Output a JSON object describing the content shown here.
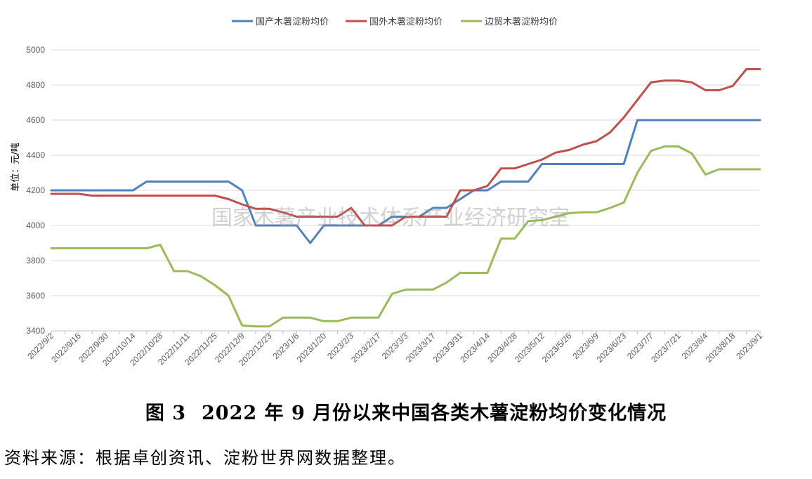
{
  "chart_data": {
    "type": "line",
    "ylabel": "单位：元/吨",
    "ylim": [
      3400,
      5000
    ],
    "yticks": [
      3400,
      3600,
      3800,
      4000,
      4200,
      4400,
      4600,
      4800,
      5000
    ],
    "grid": "horizontal",
    "legend_position": "top-center",
    "x_tick_labels": [
      "2022/9/2",
      "2022/9/16",
      "2022/9/30",
      "2022/10/14",
      "2022/10/28",
      "2022/11/11",
      "2022/11/25",
      "2022/12/9",
      "2022/12/23",
      "2023/1/6",
      "2023/1/20",
      "2023/2/3",
      "2023/2/17",
      "2023/3/3",
      "2023/3/17",
      "2023/3/31",
      "2023/4/14",
      "2023/4/28",
      "2023/5/12",
      "2023/5/26",
      "2023/6/9",
      "2023/6/23",
      "2023/7/7",
      "2023/7/21",
      "2023/8/4",
      "2023/8/18",
      "2023/9/1"
    ],
    "x": [
      "2022/9/2",
      "2022/9/9",
      "2022/9/16",
      "2022/9/23",
      "2022/9/30",
      "2022/10/7",
      "2022/10/14",
      "2022/10/21",
      "2022/10/28",
      "2022/11/4",
      "2022/11/11",
      "2022/11/18",
      "2022/11/25",
      "2022/12/2",
      "2022/12/9",
      "2022/12/16",
      "2022/12/23",
      "2022/12/30",
      "2023/1/6",
      "2023/1/13",
      "2023/1/20",
      "2023/1/27",
      "2023/2/3",
      "2023/2/10",
      "2023/2/17",
      "2023/2/24",
      "2023/3/3",
      "2023/3/10",
      "2023/3/17",
      "2023/3/24",
      "2023/3/31",
      "2023/4/7",
      "2023/4/14",
      "2023/4/21",
      "2023/4/28",
      "2023/5/5",
      "2023/5/12",
      "2023/5/19",
      "2023/5/26",
      "2023/6/2",
      "2023/6/9",
      "2023/6/16",
      "2023/6/23",
      "2023/6/30",
      "2023/7/7",
      "2023/7/14",
      "2023/7/21",
      "2023/7/28",
      "2023/8/4",
      "2023/8/11",
      "2023/8/18",
      "2023/8/25",
      "2023/9/1"
    ],
    "series": [
      {
        "name": "国产木薯淀粉均价",
        "color": "#4f81bd",
        "values": [
          4200,
          4200,
          4200,
          4200,
          4200,
          4200,
          4200,
          4250,
          4250,
          4250,
          4250,
          4250,
          4250,
          4250,
          4200,
          4000,
          4000,
          4000,
          4000,
          3900,
          4000,
          4000,
          4000,
          4000,
          4000,
          4050,
          4050,
          4050,
          4100,
          4100,
          4150,
          4200,
          4200,
          4250,
          4250,
          4250,
          4350,
          4350,
          4350,
          4350,
          4350,
          4350,
          4350,
          4600,
          4600,
          4600,
          4600,
          4600,
          4600,
          4600,
          4600,
          4600,
          4600
        ]
      },
      {
        "name": "国外木薯淀粉均价",
        "color": "#c0504d",
        "values": [
          4180,
          4180,
          4180,
          4170,
          4170,
          4170,
          4170,
          4170,
          4170,
          4170,
          4170,
          4170,
          4170,
          4150,
          4120,
          4095,
          4095,
          4075,
          4050,
          4050,
          4050,
          4050,
          4100,
          4000,
          4000,
          4000,
          4050,
          4050,
          4050,
          4050,
          4200,
          4200,
          4225,
          4325,
          4325,
          4350,
          4375,
          4415,
          4430,
          4460,
          4480,
          4530,
          4615,
          4715,
          4815,
          4825,
          4825,
          4815,
          4770,
          4770,
          4795,
          4890,
          4890
        ]
      },
      {
        "name": "边贸木薯淀粉均价",
        "color": "#9bbb59",
        "values": [
          3870,
          3870,
          3870,
          3870,
          3870,
          3870,
          3870,
          3870,
          3890,
          3740,
          3740,
          3710,
          3660,
          3600,
          3430,
          3425,
          3425,
          3475,
          3475,
          3475,
          3455,
          3455,
          3475,
          3475,
          3475,
          3610,
          3635,
          3635,
          3635,
          3675,
          3730,
          3730,
          3730,
          3925,
          3925,
          4025,
          4030,
          4050,
          4070,
          4075,
          4075,
          4100,
          4130,
          4300,
          4425,
          4450,
          4450,
          4410,
          4290,
          4320,
          4320,
          4320,
          4320
        ]
      }
    ]
  },
  "watermark": "国家木薯产业技术体系产业经济研究室",
  "caption": {
    "figure_no": "图 3",
    "title": "2022 年 9 月份以来中国各类木薯淀粉均价变化情况"
  },
  "source_note": "资料来源：根据卓创资讯、淀粉世界网数据整理。"
}
